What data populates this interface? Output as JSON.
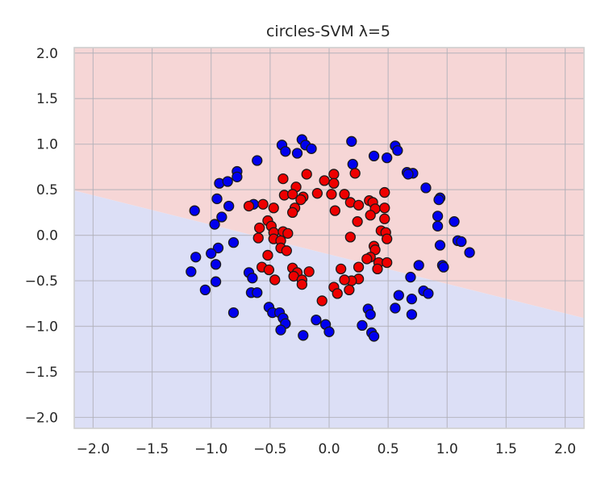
{
  "chart_data": {
    "type": "scatter",
    "title": "circles-SVM λ=5",
    "xlabel": "",
    "ylabel": "",
    "xlim": [
      -2.16,
      2.16
    ],
    "ylim": [
      -2.12,
      2.06
    ],
    "x_ticks": [
      -2.0,
      -1.5,
      -1.0,
      -0.5,
      0.0,
      0.5,
      1.0,
      1.5,
      2.0
    ],
    "x_tick_labels": [
      "−2.0",
      "−1.5",
      "−1.0",
      "−0.5",
      "0.0",
      "0.5",
      "1.0",
      "1.5",
      "2.0"
    ],
    "y_ticks": [
      2.0,
      1.5,
      1.0,
      0.5,
      0.0,
      -0.5,
      -1.0,
      -1.5,
      -2.0
    ],
    "y_tick_labels": [
      "2.0",
      "1.5",
      "1.0",
      "0.5",
      "0.0",
      "−0.5",
      "−1.0",
      "−1.5",
      "−2.0"
    ],
    "grid": true,
    "decision_boundary": {
      "x": [
        -2.16,
        2.16
      ],
      "y": [
        0.49,
        -0.91
      ],
      "region_above_color": "#f6d6d6",
      "region_below_color": "#dcdff6"
    },
    "series": [
      {
        "color": "#0000ee",
        "points": [
          [
            -0.23,
            1.05
          ],
          [
            -0.4,
            0.99
          ],
          [
            -0.37,
            0.92
          ],
          [
            -0.27,
            0.9
          ],
          [
            -0.2,
            0.99
          ],
          [
            -0.15,
            0.95
          ],
          [
            0.19,
            1.03
          ],
          [
            0.56,
            0.98
          ],
          [
            0.58,
            0.93
          ],
          [
            0.38,
            0.87
          ],
          [
            0.49,
            0.85
          ],
          [
            -0.61,
            0.82
          ],
          [
            -0.78,
            0.7
          ],
          [
            -0.78,
            0.64
          ],
          [
            -0.93,
            0.57
          ],
          [
            -0.86,
            0.59
          ],
          [
            0.2,
            0.78
          ],
          [
            0.66,
            0.69
          ],
          [
            0.71,
            0.68
          ],
          [
            0.67,
            0.67
          ],
          [
            0.82,
            0.52
          ],
          [
            0.94,
            0.41
          ],
          [
            0.93,
            0.39
          ],
          [
            -0.64,
            0.34
          ],
          [
            -0.85,
            0.32
          ],
          [
            -0.95,
            0.4
          ],
          [
            -1.14,
            0.27
          ],
          [
            -0.91,
            0.2
          ],
          [
            -0.97,
            0.12
          ],
          [
            0.92,
            0.21
          ],
          [
            1.06,
            0.15
          ],
          [
            0.92,
            0.1
          ],
          [
            1.09,
            -0.06
          ],
          [
            1.12,
            -0.07
          ],
          [
            1.19,
            -0.19
          ],
          [
            0.94,
            -0.11
          ],
          [
            -0.81,
            -0.08
          ],
          [
            -0.94,
            -0.14
          ],
          [
            -1.0,
            -0.2
          ],
          [
            -1.13,
            -0.24
          ],
          [
            -0.96,
            -0.32
          ],
          [
            -1.17,
            -0.4
          ],
          [
            0.96,
            -0.33
          ],
          [
            0.97,
            -0.35
          ],
          [
            0.76,
            -0.33
          ],
          [
            -0.68,
            -0.41
          ],
          [
            -0.65,
            -0.47
          ],
          [
            -0.96,
            -0.51
          ],
          [
            -1.05,
            -0.6
          ],
          [
            0.69,
            -0.46
          ],
          [
            0.8,
            -0.61
          ],
          [
            0.84,
            -0.64
          ],
          [
            0.59,
            -0.66
          ],
          [
            0.7,
            -0.7
          ],
          [
            -0.66,
            -0.63
          ],
          [
            -0.61,
            -0.63
          ],
          [
            -0.51,
            -0.79
          ],
          [
            -0.81,
            -0.85
          ],
          [
            -0.48,
            -0.85
          ],
          [
            -0.42,
            -0.85
          ],
          [
            -0.39,
            -0.91
          ],
          [
            0.56,
            -0.8
          ],
          [
            0.33,
            -0.81
          ],
          [
            0.35,
            -0.87
          ],
          [
            0.7,
            -0.87
          ],
          [
            -0.37,
            -0.97
          ],
          [
            -0.11,
            -0.93
          ],
          [
            -0.03,
            -0.98
          ],
          [
            -0.41,
            -1.04
          ],
          [
            0.0,
            -1.06
          ],
          [
            0.28,
            -0.99
          ],
          [
            0.36,
            -1.07
          ],
          [
            0.38,
            -1.11
          ],
          [
            -0.22,
            -1.1
          ]
        ]
      },
      {
        "color": "#ee0000",
        "points": [
          [
            -0.39,
            0.62
          ],
          [
            -0.19,
            0.67
          ],
          [
            -0.04,
            0.6
          ],
          [
            0.04,
            0.67
          ],
          [
            0.04,
            0.57
          ],
          [
            0.22,
            0.68
          ],
          [
            -0.38,
            0.44
          ],
          [
            -0.28,
            0.53
          ],
          [
            -0.31,
            0.45
          ],
          [
            -0.22,
            0.42
          ],
          [
            -0.1,
            0.46
          ],
          [
            0.02,
            0.45
          ],
          [
            0.13,
            0.45
          ],
          [
            0.18,
            0.36
          ],
          [
            0.34,
            0.38
          ],
          [
            0.37,
            0.36
          ],
          [
            0.47,
            0.47
          ],
          [
            0.39,
            0.29
          ],
          [
            0.47,
            0.3
          ],
          [
            -0.56,
            0.34
          ],
          [
            -0.68,
            0.32
          ],
          [
            -0.47,
            0.3
          ],
          [
            -0.29,
            0.3
          ],
          [
            -0.24,
            0.39
          ],
          [
            -0.31,
            0.25
          ],
          [
            0.05,
            0.27
          ],
          [
            0.25,
            0.33
          ],
          [
            0.35,
            0.22
          ],
          [
            0.47,
            0.18
          ],
          [
            -0.52,
            0.16
          ],
          [
            -0.49,
            0.1
          ],
          [
            -0.59,
            0.08
          ],
          [
            -0.47,
            0.03
          ],
          [
            -0.39,
            0.04
          ],
          [
            -0.35,
            0.02
          ],
          [
            0.24,
            0.15
          ],
          [
            0.44,
            0.05
          ],
          [
            0.48,
            0.03
          ],
          [
            -0.6,
            -0.03
          ],
          [
            -0.47,
            -0.04
          ],
          [
            -0.41,
            -0.06
          ],
          [
            -0.41,
            -0.14
          ],
          [
            -0.36,
            -0.17
          ],
          [
            0.18,
            -0.02
          ],
          [
            0.49,
            -0.04
          ],
          [
            0.38,
            -0.12
          ],
          [
            0.39,
            -0.16
          ],
          [
            -0.52,
            -0.22
          ],
          [
            -0.57,
            -0.35
          ],
          [
            -0.51,
            -0.38
          ],
          [
            0.35,
            -0.24
          ],
          [
            0.42,
            -0.3
          ],
          [
            0.49,
            -0.3
          ],
          [
            0.32,
            -0.26
          ],
          [
            0.41,
            -0.37
          ],
          [
            -0.31,
            -0.36
          ],
          [
            -0.27,
            -0.41
          ],
          [
            -0.3,
            -0.45
          ],
          [
            -0.17,
            -0.4
          ],
          [
            0.1,
            -0.37
          ],
          [
            0.25,
            -0.35
          ],
          [
            0.25,
            -0.48
          ],
          [
            0.19,
            -0.5
          ],
          [
            -0.46,
            -0.49
          ],
          [
            -0.23,
            -0.49
          ],
          [
            -0.23,
            -0.54
          ],
          [
            0.13,
            -0.49
          ],
          [
            0.04,
            -0.57
          ],
          [
            0.07,
            -0.64
          ],
          [
            -0.06,
            -0.72
          ],
          [
            0.17,
            -0.6
          ]
        ]
      }
    ]
  }
}
